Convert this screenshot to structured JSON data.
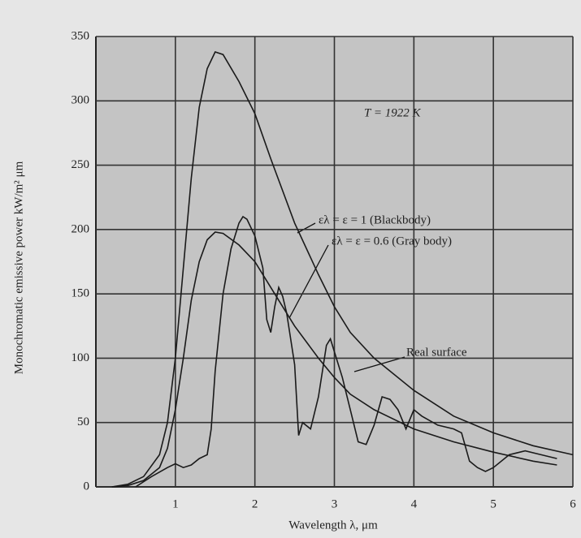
{
  "chart_data": {
    "type": "line",
    "xlabel": "Wavelength λ, μm",
    "ylabel": "Monochromatic emissive power  kW/m² μm",
    "annotations": [
      "T = 1922 K"
    ],
    "xlim": [
      0,
      6
    ],
    "xticks": [
      1,
      2,
      3,
      4,
      5,
      6
    ],
    "ylim": [
      0,
      350
    ],
    "yticks": [
      0,
      50,
      100,
      150,
      200,
      250,
      300,
      350
    ],
    "grid": true,
    "series": [
      {
        "name": "ελ = ε = 1 (Blackbody)",
        "color": "#1a1a1a",
        "x": [
          0.2,
          0.4,
          0.6,
          0.8,
          0.9,
          1.0,
          1.1,
          1.2,
          1.3,
          1.4,
          1.5,
          1.6,
          1.8,
          2.0,
          2.2,
          2.5,
          2.8,
          3.0,
          3.2,
          3.5,
          4.0,
          4.5,
          5.0,
          5.5,
          6.0
        ],
        "values": [
          0,
          2,
          8,
          25,
          50,
          100,
          170,
          240,
          295,
          325,
          338,
          336,
          315,
          290,
          255,
          205,
          165,
          140,
          120,
          100,
          75,
          55,
          42,
          32,
          25
        ]
      },
      {
        "name": "ελ = ε = 0.6 (Gray body)",
        "color": "#1a1a1a",
        "x": [
          0.2,
          0.4,
          0.6,
          0.8,
          0.9,
          1.0,
          1.1,
          1.2,
          1.3,
          1.4,
          1.5,
          1.6,
          1.8,
          2.0,
          2.2,
          2.5,
          2.8,
          3.0,
          3.2,
          3.5,
          4.0,
          4.5,
          5.0,
          5.5,
          5.8
        ],
        "values": [
          0,
          1,
          5,
          15,
          30,
          60,
          100,
          145,
          175,
          192,
          198,
          197,
          188,
          175,
          155,
          125,
          100,
          85,
          72,
          60,
          45,
          35,
          27,
          20,
          17
        ]
      },
      {
        "name": "Real surface",
        "color": "#1a1a1a",
        "x": [
          0.5,
          0.7,
          0.9,
          1.0,
          1.1,
          1.2,
          1.3,
          1.4,
          1.45,
          1.5,
          1.6,
          1.7,
          1.8,
          1.85,
          1.9,
          2.0,
          2.1,
          2.15,
          2.2,
          2.25,
          2.3,
          2.35,
          2.4,
          2.5,
          2.55,
          2.6,
          2.7,
          2.8,
          2.9,
          2.95,
          3.0,
          3.1,
          3.2,
          3.3,
          3.4,
          3.5,
          3.6,
          3.7,
          3.8,
          3.9,
          4.0,
          4.1,
          4.3,
          4.5,
          4.6,
          4.7,
          4.8,
          4.9,
          5.0,
          5.2,
          5.4,
          5.6,
          5.8
        ],
        "values": [
          0,
          8,
          15,
          18,
          15,
          17,
          22,
          25,
          45,
          90,
          150,
          185,
          205,
          210,
          208,
          195,
          170,
          130,
          120,
          140,
          155,
          148,
          135,
          95,
          40,
          50,
          45,
          70,
          110,
          115,
          105,
          85,
          60,
          35,
          33,
          48,
          70,
          68,
          60,
          45,
          60,
          55,
          48,
          45,
          42,
          20,
          15,
          12,
          15,
          25,
          28,
          25,
          22
        ]
      }
    ]
  }
}
